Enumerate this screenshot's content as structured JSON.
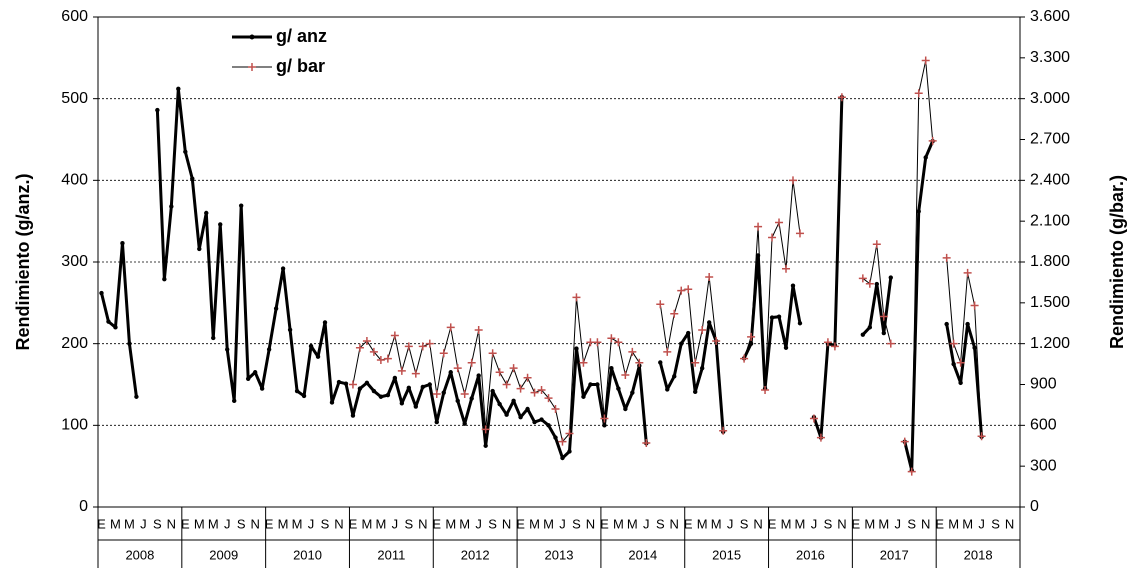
{
  "chart_data": {
    "type": "line",
    "y_label": "Rendimiento (g/anz.)",
    "y2_label": "Rendimiento (g/bar.)",
    "categories": [
      "E",
      null,
      "M",
      null,
      "M",
      null,
      "J",
      null,
      "S",
      null,
      "N",
      null,
      "E",
      null,
      "M",
      null,
      "M",
      null,
      "J",
      null,
      "S",
      null,
      "N",
      null,
      "E",
      null,
      "M",
      null,
      "M",
      null,
      "J",
      null,
      "S",
      null,
      "N",
      null,
      "E",
      null,
      "M",
      null,
      "M",
      null,
      "J",
      null,
      "S",
      null,
      "N",
      null,
      "E",
      null,
      "M",
      null,
      "M",
      null,
      "J",
      null,
      "S",
      null,
      "N",
      null,
      "E",
      null,
      "M",
      null,
      "M",
      null,
      "J",
      null,
      "S",
      null,
      "N",
      null,
      "E",
      null,
      "M",
      null,
      "M",
      null,
      "J",
      null,
      "S",
      null,
      "N",
      null,
      "E",
      null,
      "M",
      null,
      "M",
      null,
      "J",
      null,
      "S",
      null,
      "N",
      null,
      "E",
      null,
      "M",
      null,
      "M",
      null,
      "J",
      null,
      "S",
      null,
      "N",
      null,
      "E",
      null,
      "M",
      null,
      "M",
      null,
      "J",
      null,
      "S",
      null,
      "N",
      null,
      "E",
      null,
      "M",
      null,
      "M",
      null,
      "J",
      null,
      "S",
      null,
      "N",
      null
    ],
    "years": [
      "2008",
      "2009",
      "2010",
      "2011",
      "2012",
      "2013",
      "2014",
      "2015",
      "2016",
      "2017",
      "2018"
    ],
    "series": [
      {
        "name": "g/ anz",
        "color": "#000000",
        "marker": "circle",
        "values": [
          262,
          227,
          220,
          323,
          200,
          135,
          null,
          null,
          486,
          279,
          368,
          512,
          435,
          402,
          316,
          360,
          207,
          346,
          193,
          130,
          369,
          157,
          165,
          145,
          193,
          243,
          292,
          217,
          142,
          136,
          197,
          184,
          226,
          128,
          153,
          151,
          112,
          145,
          152,
          142,
          135,
          137,
          158,
          127,
          146,
          123,
          147,
          150,
          104,
          140,
          165,
          130,
          102,
          133,
          161,
          75,
          142,
          126,
          113,
          130,
          110,
          120,
          104,
          107,
          100,
          85,
          60,
          68,
          194,
          135,
          150,
          150,
          100,
          170,
          145,
          120,
          140,
          173,
          78,
          null,
          177,
          144,
          160,
          200,
          213,
          141,
          170,
          226,
          203,
          92,
          null,
          null,
          182,
          200,
          308,
          145,
          232,
          233,
          195,
          271,
          225,
          null,
          110,
          85,
          200,
          198,
          502,
          null,
          null,
          211,
          220,
          273,
          213,
          281,
          null,
          80,
          45,
          362,
          428,
          448,
          null,
          224,
          175,
          152,
          224,
          195,
          86,
          null,
          null,
          null,
          null,
          null
        ]
      },
      {
        "name": "g/ bar",
        "color": "#000000",
        "marker_color": "#c0504d",
        "marker": "plus",
        "axis": "y2",
        "values": [
          null,
          null,
          null,
          null,
          null,
          null,
          null,
          null,
          null,
          null,
          null,
          null,
          null,
          null,
          null,
          null,
          null,
          null,
          null,
          null,
          null,
          null,
          null,
          null,
          null,
          null,
          null,
          null,
          null,
          null,
          null,
          null,
          null,
          null,
          null,
          null,
          900,
          1170,
          1220,
          1140,
          1080,
          1090,
          1260,
          1000,
          1180,
          980,
          1180,
          1200,
          830,
          1130,
          1320,
          1020,
          830,
          1060,
          1300,
          570,
          1130,
          990,
          900,
          1020,
          870,
          950,
          840,
          860,
          800,
          720,
          480,
          540,
          1540,
          1060,
          1210,
          1210,
          650,
          1240,
          1210,
          970,
          1140,
          1060,
          470,
          null,
          1490,
          1140,
          1420,
          1590,
          1600,
          1060,
          1300,
          1690,
          1220,
          560,
          null,
          null,
          1090,
          1250,
          2060,
          860,
          1980,
          2090,
          1750,
          2400,
          2010,
          null,
          650,
          510,
          1210,
          1180,
          3010,
          null,
          null,
          1680,
          1640,
          1930,
          1400,
          1200,
          null,
          480,
          260,
          3040,
          3280,
          2690,
          null,
          1830,
          1200,
          1060,
          1720,
          1480,
          520,
          null,
          null,
          null,
          null,
          null
        ]
      }
    ],
    "ylim": [
      0,
      600
    ],
    "yticks": [
      0,
      100,
      200,
      300,
      400,
      500,
      600
    ],
    "y2lim": [
      0,
      3600
    ],
    "y2ticks": [
      0,
      300,
      600,
      900,
      {
        "value": 1200,
        "label": "1.200"
      },
      {
        "value": 1500,
        "label": "1.500"
      },
      {
        "value": 1800,
        "label": "1.800"
      },
      {
        "value": 2100,
        "label": "2.100"
      },
      {
        "value": 2400,
        "label": "2.400"
      },
      {
        "value": 2700,
        "label": "2.700"
      },
      {
        "value": 3000,
        "label": "3.000"
      },
      {
        "value": 3300,
        "label": "3.300"
      },
      {
        "value": 3600,
        "label": "3.600"
      }
    ],
    "grid": true,
    "legend": "upper-left"
  }
}
